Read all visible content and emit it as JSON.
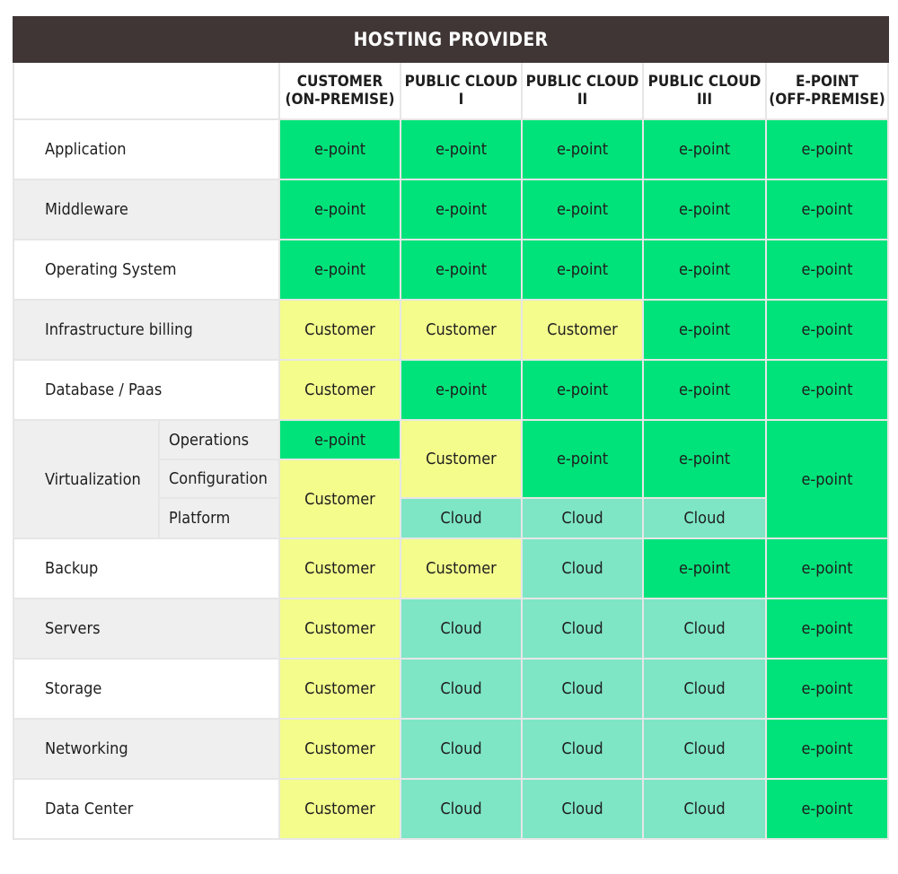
{
  "title": "HOSTING PROVIDER",
  "columns": [
    {
      "line1": "CUSTOMER",
      "line2": "(ON-PREMISE)"
    },
    {
      "line1": "PUBLIC CLOUD I",
      "line2": ""
    },
    {
      "line1": "PUBLIC CLOUD II",
      "line2": ""
    },
    {
      "line1": "PUBLIC CLOUD III",
      "line2": ""
    },
    {
      "line1": "E-POINT",
      "line2": "(OFF-PREMISE)"
    }
  ],
  "values": {
    "epoint": "e-point",
    "customer": "Customer",
    "cloud": "Cloud"
  },
  "rows": {
    "application": "Application",
    "middleware": "Middleware",
    "operating_system": "Operating System",
    "infrastructure_billing": "Infrastructure billing",
    "database_paas": "Database / Paas",
    "virtualization": "Virtualization",
    "operations": "Operations",
    "configuration": "Configuration",
    "platform": "Platform",
    "backup": "Backup",
    "servers": "Servers",
    "storage": "Storage",
    "networking": "Networking",
    "data_center": "Data Center"
  },
  "colors": {
    "header_bg": "#3f3635",
    "epoint": "#00e37a",
    "customer": "#f4fc8c",
    "cloud": "#7ee6c5"
  }
}
